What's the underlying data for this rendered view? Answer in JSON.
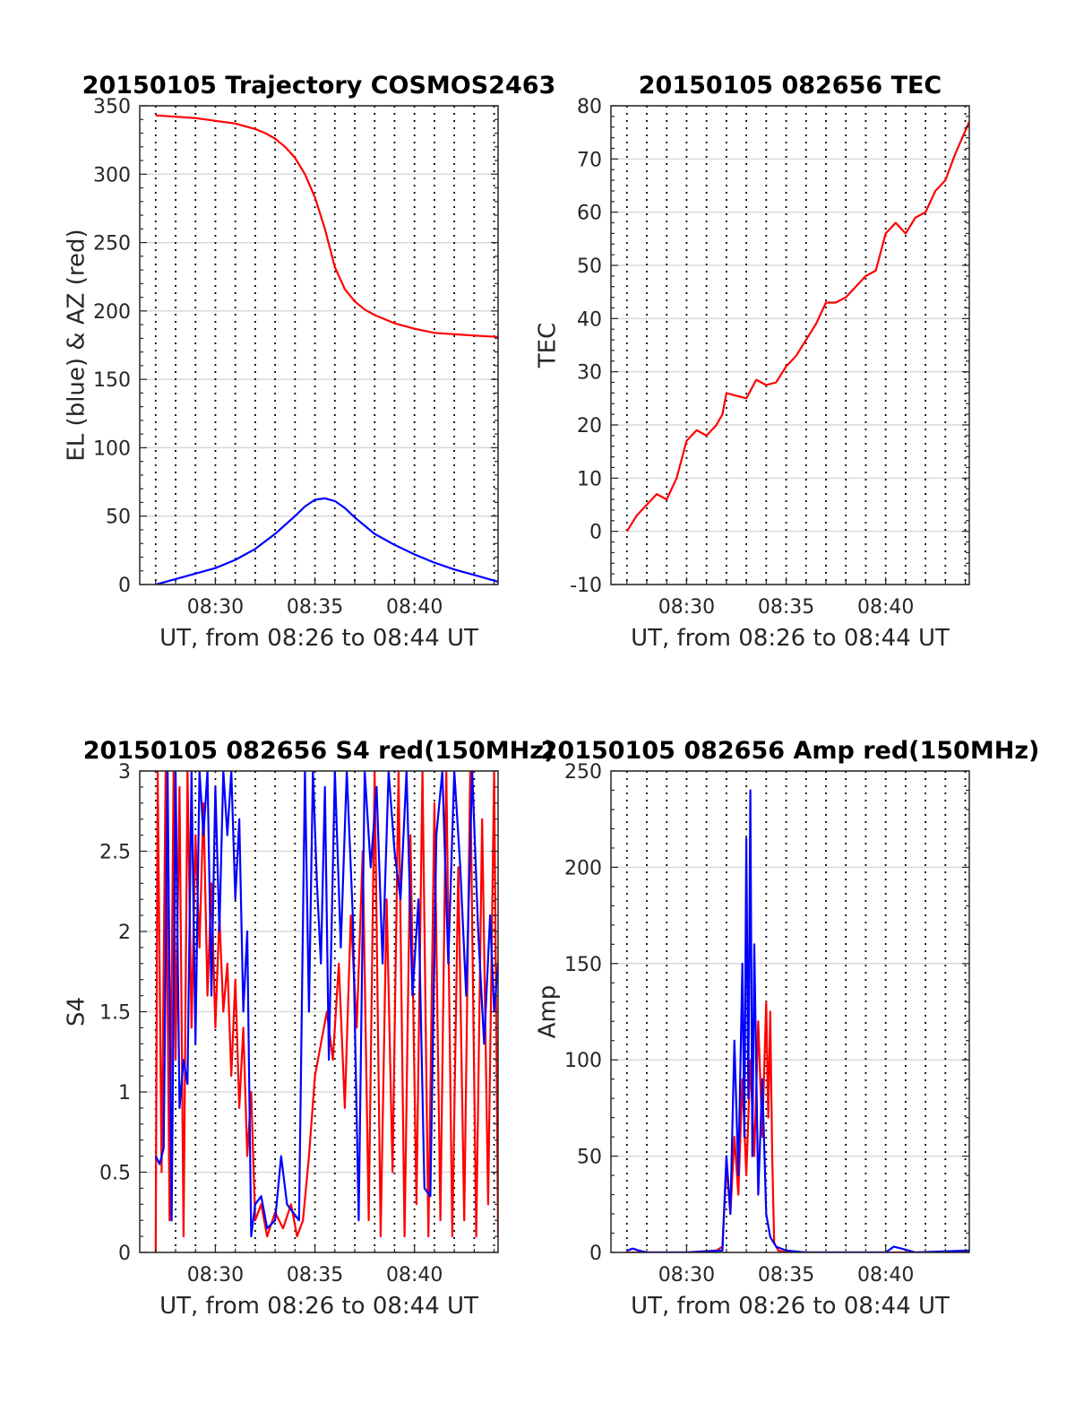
{
  "colors": {
    "red": "#ff0000",
    "blue": "#0000ff",
    "grid": "#d9d9d9",
    "axis": "#262626"
  },
  "chart_data": [
    {
      "type": "line",
      "title": "20150105 Trajectory COSMOS2463",
      "xlabel": "UT, from 08:26 to 08:44 UT",
      "ylabel": "EL (blue) & AZ (red)",
      "xlim": [
        26.2,
        44.2
      ],
      "ylim": [
        0,
        350
      ],
      "xticks": [
        30,
        35,
        40
      ],
      "xticklabels": [
        "08:30",
        "08:35",
        "08:40"
      ],
      "yticks": [
        0,
        50,
        100,
        150,
        200,
        250,
        300,
        350
      ],
      "yticklabels": [
        "0",
        "50",
        "100",
        "150",
        "200",
        "250",
        "300",
        "350"
      ],
      "series": [
        {
          "color": "#ff0000",
          "x": [
            27.0,
            28.0,
            29.0,
            30.0,
            31.0,
            32.0,
            32.5,
            33.0,
            33.5,
            34.0,
            34.5,
            35.0,
            35.5,
            36.0,
            36.5,
            37.0,
            37.5,
            38.0,
            39.0,
            40.0,
            41.0,
            42.0,
            43.0,
            44.2
          ],
          "y": [
            343,
            342,
            341,
            339,
            337,
            333,
            330,
            326,
            320,
            312,
            300,
            283,
            260,
            232,
            216,
            207,
            201,
            197,
            191,
            187,
            184,
            183,
            182,
            181
          ]
        },
        {
          "color": "#0000ff",
          "x": [
            27.0,
            28.0,
            29.0,
            30.0,
            31.0,
            32.0,
            33.0,
            34.0,
            34.5,
            35.0,
            35.5,
            36.0,
            36.5,
            37.0,
            37.5,
            38.0,
            39.0,
            40.0,
            41.0,
            42.0,
            43.0,
            44.2
          ],
          "y": [
            0,
            4,
            8,
            12,
            18,
            26,
            37,
            50,
            57,
            62,
            63,
            61,
            56,
            49,
            43,
            37,
            29,
            22,
            16,
            11,
            7,
            2
          ]
        }
      ]
    },
    {
      "type": "line",
      "title": "20150105 082656 TEC",
      "xlabel": "UT, from 08:26 to 08:44 UT",
      "ylabel": "TEC",
      "xlim": [
        26.2,
        44.2
      ],
      "ylim": [
        -10,
        80
      ],
      "xticks": [
        30,
        35,
        40
      ],
      "xticklabels": [
        "08:30",
        "08:35",
        "08:40"
      ],
      "yticks": [
        -10,
        0,
        10,
        20,
        30,
        40,
        50,
        60,
        70,
        80
      ],
      "yticklabels": [
        "-10",
        "0",
        "10",
        "20",
        "30",
        "40",
        "50",
        "60",
        "70",
        "80"
      ],
      "series": [
        {
          "color": "#ff0000",
          "x": [
            27.0,
            27.5,
            28.0,
            28.5,
            29.0,
            29.5,
            30.0,
            30.5,
            31.0,
            31.5,
            31.8,
            32.0,
            32.5,
            33.0,
            33.5,
            34.0,
            34.5,
            35.0,
            35.5,
            36.0,
            36.5,
            37.0,
            37.5,
            38.0,
            38.5,
            39.0,
            39.5,
            40.0,
            40.5,
            41.0,
            41.5,
            42.0,
            42.5,
            43.0,
            43.5,
            44.2
          ],
          "y": [
            0,
            3,
            5,
            7,
            6,
            10,
            17,
            19,
            18,
            20,
            22,
            26,
            25.5,
            25,
            28.5,
            27.5,
            28,
            31,
            33,
            36,
            39,
            43,
            43,
            44,
            46,
            48,
            49,
            56,
            58,
            56,
            59,
            60,
            64,
            66,
            71,
            77
          ]
        }
      ]
    },
    {
      "type": "line",
      "title": "20150105 082656 S4 red(150MHz)",
      "xlabel": "UT, from 08:26 to 08:44 UT",
      "ylabel": "S4",
      "xlim": [
        26.2,
        44.2
      ],
      "ylim": [
        0,
        3
      ],
      "xticks": [
        30,
        35,
        40
      ],
      "xticklabels": [
        "08:30",
        "08:35",
        "08:40"
      ],
      "yticks": [
        0,
        0.5,
        1,
        1.5,
        2,
        2.5,
        3
      ],
      "yticklabels": [
        "0",
        "0.5",
        "1",
        "1.5",
        "2",
        "2.5",
        "3"
      ],
      "series": [
        {
          "color": "#ff0000",
          "x": [
            27.0,
            27.1,
            27.3,
            27.5,
            27.7,
            27.9,
            28.0,
            28.2,
            28.4,
            28.6,
            28.8,
            29.0,
            29.2,
            29.4,
            29.6,
            29.8,
            30.0,
            30.2,
            30.4,
            30.6,
            30.8,
            31.0,
            31.2,
            31.4,
            31.6,
            31.8,
            32.0,
            32.3,
            32.6,
            33.0,
            33.4,
            33.8,
            34.1,
            34.4,
            34.7,
            35.0,
            35.3,
            35.6,
            35.9,
            36.2,
            36.5,
            36.8,
            37.1,
            37.4,
            37.7,
            38.0,
            38.3,
            38.6,
            38.9,
            39.2,
            39.5,
            39.8,
            40.1,
            40.4,
            40.7,
            41.0,
            41.3,
            41.6,
            41.9,
            42.2,
            42.5,
            42.8,
            43.1,
            43.4,
            43.7,
            44.0,
            44.2
          ],
          "y": [
            0,
            3,
            0.5,
            3,
            0.2,
            3,
            1.2,
            2.9,
            0.1,
            3,
            1.4,
            2.6,
            1.9,
            2.8,
            1.6,
            2.3,
            1.4,
            2.1,
            1.5,
            1.8,
            1.1,
            1.7,
            0.9,
            1.4,
            0.6,
            1.0,
            0.2,
            0.3,
            0.1,
            0.25,
            0.15,
            0.3,
            0.1,
            0.2,
            0.6,
            1.1,
            1.3,
            1.5,
            1.2,
            1.8,
            0.9,
            2.1,
            1.4,
            2.5,
            0.2,
            3,
            0.1,
            2.2,
            0.5,
            3,
            0.1,
            2.6,
            0.3,
            3,
            0.1,
            2.8,
            0.2,
            3,
            0.1,
            2.4,
            0.2,
            3,
            0.1,
            2.7,
            0.3,
            3,
            0.1
          ]
        },
        {
          "color": "#0000ff",
          "x": [
            27.0,
            27.2,
            27.4,
            27.6,
            27.8,
            28.0,
            28.2,
            28.4,
            28.6,
            28.8,
            29.0,
            29.2,
            29.4,
            29.6,
            29.8,
            30.0,
            30.2,
            30.4,
            30.6,
            30.8,
            31.0,
            31.2,
            31.4,
            31.6,
            31.8,
            32.0,
            32.3,
            32.6,
            33.0,
            33.3,
            33.6,
            33.9,
            34.2,
            34.5,
            34.7,
            34.9,
            35.1,
            35.3,
            35.5,
            35.7,
            36.0,
            36.3,
            36.6,
            36.9,
            37.2,
            37.5,
            37.8,
            38.1,
            38.4,
            38.7,
            39.0,
            39.3,
            39.6,
            39.9,
            40.2,
            40.5,
            40.8,
            41.1,
            41.4,
            41.7,
            42.0,
            42.3,
            42.6,
            42.9,
            43.2,
            43.5,
            43.8,
            44.0,
            44.2
          ],
          "y": [
            0.6,
            0.55,
            0.65,
            3,
            0.2,
            3,
            0.9,
            1.2,
            1.05,
            3,
            1.3,
            3,
            2.6,
            3,
            1.6,
            2.9,
            2.0,
            3,
            2.6,
            3,
            2.2,
            2.7,
            1.5,
            2.0,
            0.1,
            0.3,
            0.35,
            0.15,
            0.2,
            0.6,
            0.3,
            0.25,
            0.2,
            3,
            1.5,
            3,
            2.3,
            1.8,
            2.9,
            1.2,
            3,
            1.9,
            3,
            2.1,
            0.2,
            3,
            2.4,
            2.9,
            1.8,
            3,
            2.5,
            2.2,
            3,
            1.6,
            2.2,
            0.4,
            0.35,
            2.6,
            3,
            1.8,
            3,
            2.4,
            1.6,
            3,
            2.0,
            1.3,
            2.1,
            1.5,
            1.8
          ]
        }
      ]
    },
    {
      "type": "line",
      "title": "20150105 082656 Amp red(150MHz)",
      "xlabel": "UT, from 08:26 to 08:44 UT",
      "ylabel": "Amp",
      "xlim": [
        26.2,
        44.2
      ],
      "ylim": [
        0,
        250
      ],
      "xticks": [
        30,
        35,
        40
      ],
      "xticklabels": [
        "08:30",
        "08:35",
        "08:40"
      ],
      "yticks": [
        0,
        50,
        100,
        150,
        200,
        250
      ],
      "yticklabels": [
        "0",
        "50",
        "100",
        "150",
        "200",
        "250"
      ],
      "series": [
        {
          "color": "#ff0000",
          "x": [
            27.0,
            30.0,
            31.5,
            31.8,
            32.0,
            32.2,
            32.4,
            32.6,
            32.8,
            33.0,
            33.2,
            33.4,
            33.6,
            33.8,
            34.0,
            34.1,
            34.2,
            34.3,
            34.4,
            34.6,
            35.0,
            40.0,
            44.2
          ],
          "y": [
            0,
            0,
            1,
            3,
            45,
            20,
            60,
            30,
            90,
            40,
            100,
            50,
            120,
            60,
            130,
            70,
            125,
            50,
            5,
            1,
            0,
            0,
            0
          ]
        },
        {
          "color": "#0000ff",
          "x": [
            27.0,
            27.3,
            27.6,
            28.0,
            30.0,
            31.8,
            32.0,
            32.2,
            32.4,
            32.6,
            32.8,
            32.9,
            33.0,
            33.1,
            33.2,
            33.3,
            33.4,
            33.6,
            33.8,
            34.0,
            34.2,
            34.5,
            35.0,
            36.0,
            40.0,
            40.4,
            40.8,
            41.5,
            44.2
          ],
          "y": [
            1,
            2,
            1,
            0,
            0,
            1,
            50,
            20,
            110,
            40,
            150,
            60,
            215,
            80,
            240,
            50,
            160,
            30,
            90,
            20,
            8,
            3,
            1,
            0,
            0,
            3,
            2,
            0,
            1
          ]
        }
      ]
    }
  ]
}
